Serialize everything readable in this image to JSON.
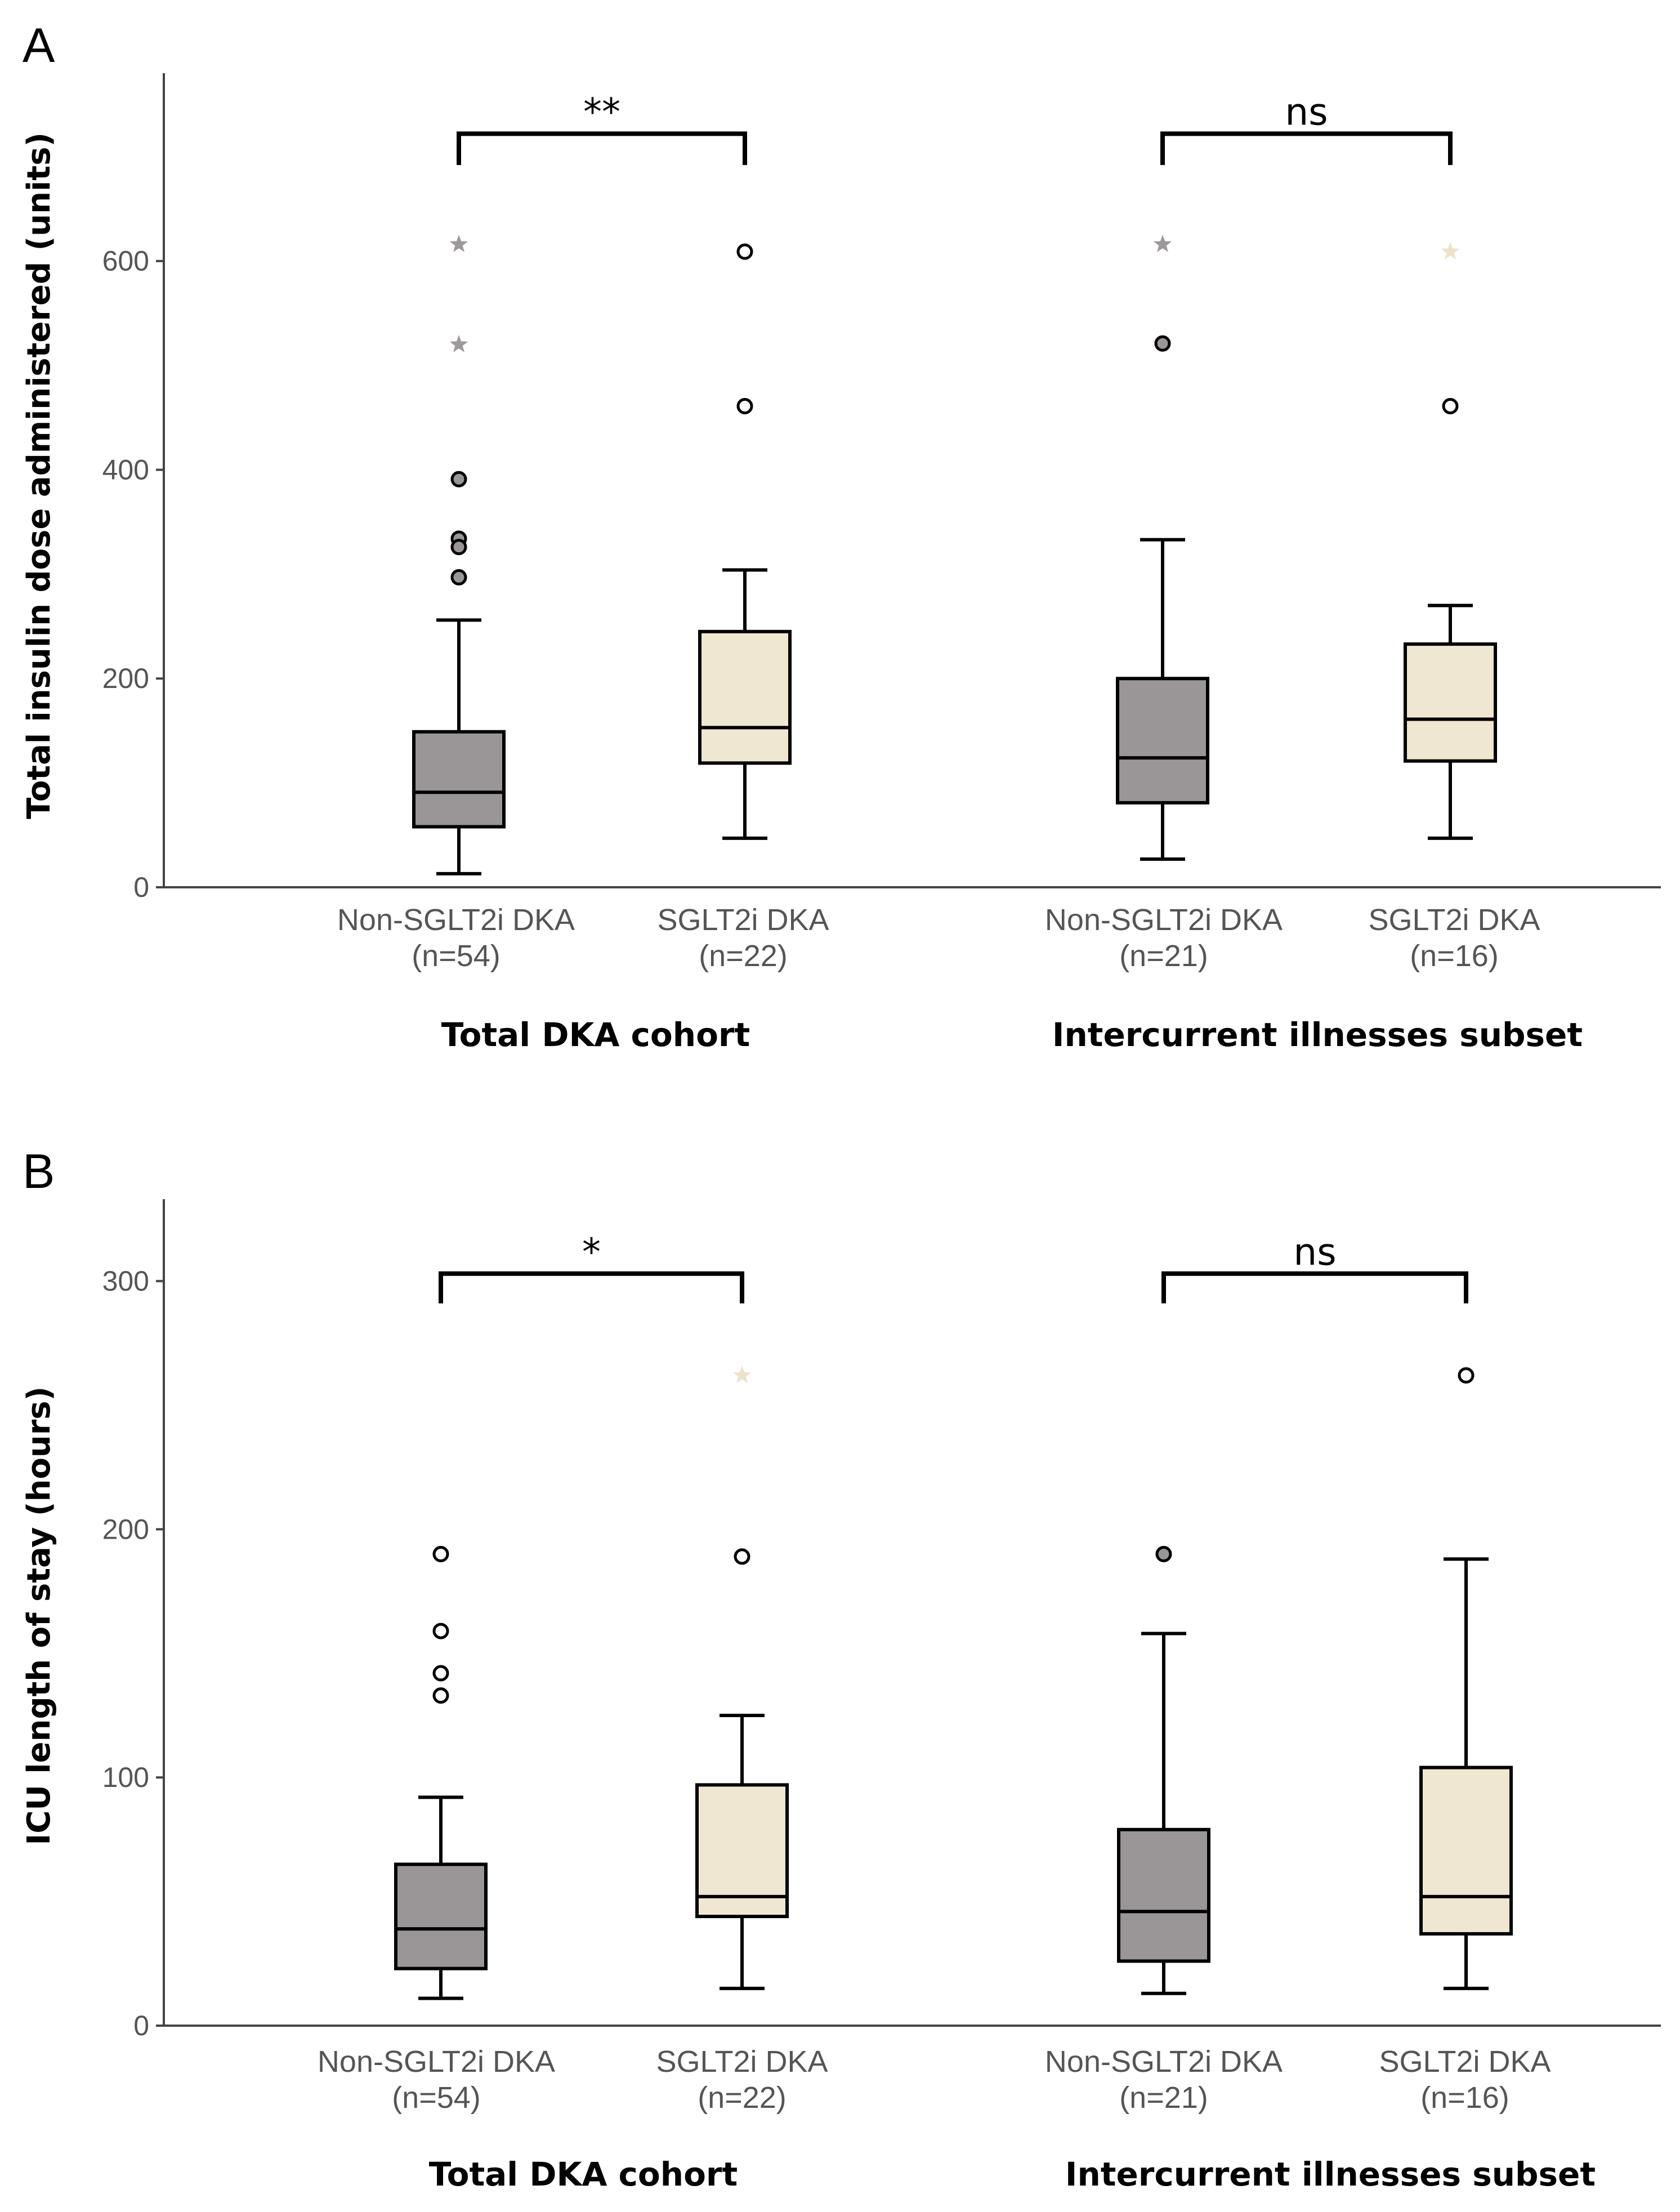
{
  "chart_data": [
    {
      "panel": "A",
      "type": "boxplot",
      "ylabel": "Total insulin dose administered (units)",
      "ylim": [
        0,
        780
      ],
      "yticks": [
        0,
        200,
        400,
        600
      ],
      "groups": [
        {
          "label": "Total DKA cohort",
          "categories": [
            0,
            1
          ]
        },
        {
          "label": "Intercurrent illnesses subset",
          "categories": [
            2,
            3
          ]
        }
      ],
      "colors": {
        "non": "#9a9596",
        "sglt2": "#efe7d2",
        "star_non": "#9e9a9b",
        "star_sglt2": "#ede3cb"
      },
      "categories": [
        {
          "name": "Non-SGLT2i DKA",
          "n": "(n=54)",
          "color": "non",
          "whisker_low": 13,
          "q1": 58,
          "median": 91,
          "q3": 149,
          "whisker_high": 256,
          "outliers": [
            {
              "y": 391,
              "shape": "circle",
              "fill": "gray"
            },
            {
              "y": 334,
              "shape": "circle",
              "fill": "gray"
            },
            {
              "y": 326,
              "shape": "circle",
              "fill": "gray"
            },
            {
              "y": 297,
              "shape": "circle",
              "fill": "gray"
            },
            {
              "y": 616,
              "shape": "star"
            },
            {
              "y": 520,
              "shape": "star"
            }
          ]
        },
        {
          "name": "SGLT2i DKA",
          "n": "(n=22)",
          "color": "sglt2",
          "whisker_low": 47,
          "q1": 119,
          "median": 153,
          "q3": 245,
          "whisker_high": 304,
          "outliers": [
            {
              "y": 609,
              "shape": "circle",
              "fill": "white"
            },
            {
              "y": 461,
              "shape": "circle",
              "fill": "white"
            }
          ]
        },
        {
          "name": "Non-SGLT2i DKA",
          "n": "(n=21)",
          "color": "non",
          "whisker_low": 27,
          "q1": 81,
          "median": 124,
          "q3": 200,
          "whisker_high": 333,
          "outliers": [
            {
              "y": 521,
              "shape": "circle",
              "fill": "gray"
            },
            {
              "y": 616,
              "shape": "star"
            }
          ]
        },
        {
          "name": "SGLT2i DKA",
          "n": "(n=16)",
          "color": "sglt2",
          "whisker_low": 47,
          "q1": 121,
          "median": 161,
          "q3": 233,
          "whisker_high": 270,
          "outliers": [
            {
              "y": 461,
              "shape": "circle",
              "fill": "white"
            },
            {
              "y": 609,
              "shape": "star"
            }
          ]
        }
      ],
      "comparisons": [
        {
          "from": 0,
          "to": 1,
          "label": "**",
          "y": 722,
          "drop": 30
        },
        {
          "from": 2,
          "to": 3,
          "label": "ns",
          "y": 722,
          "drop": 30
        }
      ]
    },
    {
      "panel": "B",
      "type": "boxplot",
      "ylabel": "ICU length of stay (hours)",
      "ylim": [
        0,
        333
      ],
      "yticks": [
        0,
        100,
        200,
        300
      ],
      "groups": [
        {
          "label": "Total DKA cohort",
          "categories": [
            0,
            1
          ]
        },
        {
          "label": "Intercurrent illnesses subset",
          "categories": [
            2,
            3
          ]
        }
      ],
      "colors": {
        "non": "#9a9596",
        "sglt2": "#efe7d2",
        "star_non": "#9e9a9b",
        "star_sglt2": "#ede3cb"
      },
      "categories": [
        {
          "name": "Non-SGLT2i DKA",
          "n": "(n=54)",
          "color": "non",
          "whisker_low": 11,
          "q1": 23,
          "median": 39,
          "q3": 65,
          "whisker_high": 92,
          "outliers": [
            {
              "y": 190,
              "shape": "circle",
              "fill": "white"
            },
            {
              "y": 159,
              "shape": "circle",
              "fill": "white"
            },
            {
              "y": 142,
              "shape": "circle",
              "fill": "white"
            },
            {
              "y": 133,
              "shape": "circle",
              "fill": "white"
            }
          ]
        },
        {
          "name": "SGLT2i DKA",
          "n": "(n=22)",
          "color": "sglt2",
          "whisker_low": 15,
          "q1": 44,
          "median": 52,
          "q3": 97,
          "whisker_high": 125,
          "outliers": [
            {
              "y": 189,
              "shape": "circle",
              "fill": "white"
            },
            {
              "y": 262,
              "shape": "star"
            }
          ]
        },
        {
          "name": "Non-SGLT2i DKA",
          "n": "(n=21)",
          "color": "non",
          "whisker_low": 13,
          "q1": 26,
          "median": 46,
          "q3": 79,
          "whisker_high": 158,
          "outliers": [
            {
              "y": 190,
              "shape": "circle",
              "fill": "gray"
            }
          ]
        },
        {
          "name": "SGLT2i DKA",
          "n": "(n=16)",
          "color": "sglt2",
          "whisker_low": 15,
          "q1": 37,
          "median": 52,
          "q3": 104,
          "whisker_high": 188,
          "outliers": [
            {
              "y": 262,
              "shape": "circle",
              "fill": "white"
            }
          ]
        }
      ],
      "comparisons": [
        {
          "from": 0,
          "to": 1,
          "label": "*",
          "y": 303,
          "drop": 12
        },
        {
          "from": 2,
          "to": 3,
          "label": "ns",
          "y": 303,
          "drop": 12
        }
      ]
    }
  ]
}
